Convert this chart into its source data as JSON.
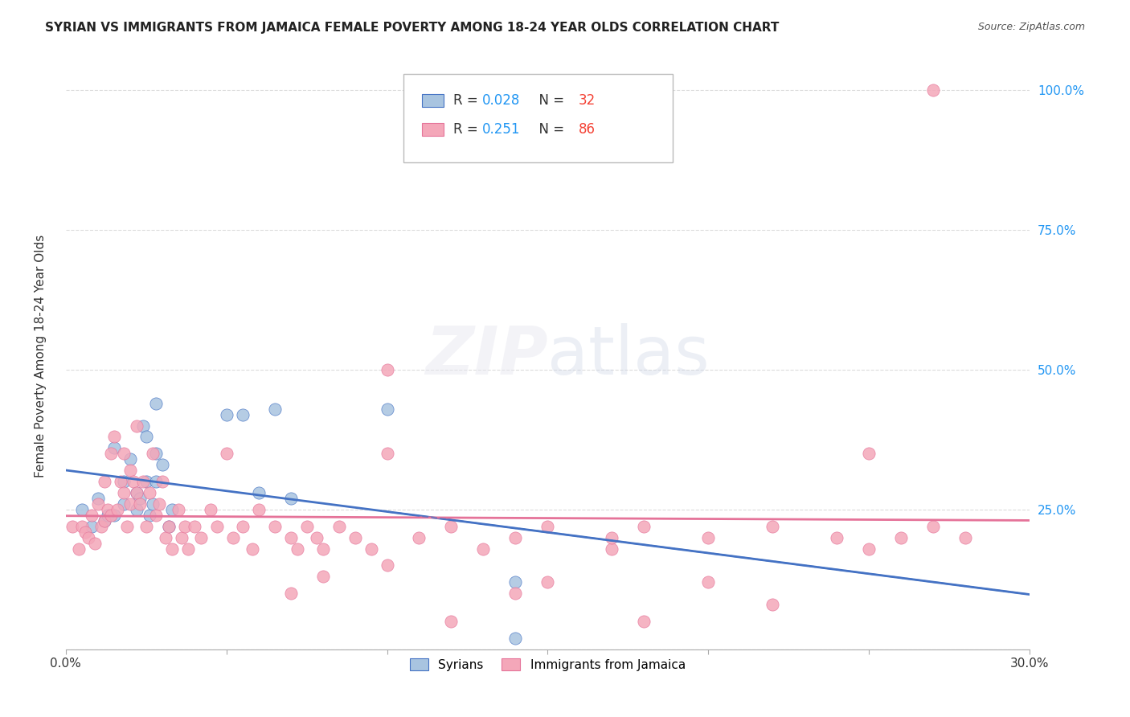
{
  "title": "SYRIAN VS IMMIGRANTS FROM JAMAICA FEMALE POVERTY AMONG 18-24 YEAR OLDS CORRELATION CHART",
  "source": "Source: ZipAtlas.com",
  "xlabel": "",
  "ylabel": "Female Poverty Among 18-24 Year Olds",
  "xlim": [
    0.0,
    0.3
  ],
  "ylim": [
    0.0,
    1.05
  ],
  "xticks": [
    0.0,
    0.05,
    0.1,
    0.15,
    0.2,
    0.25,
    0.3
  ],
  "xticklabels": [
    "0.0%",
    "",
    "",
    "",
    "",
    "",
    "30.0%"
  ],
  "ytick_positions": [
    0.0,
    0.25,
    0.5,
    0.75,
    1.0
  ],
  "yticklabels_right": [
    "",
    "25.0%",
    "50.0%",
    "75.0%",
    "100.0%"
  ],
  "syrian_color": "#a8c4e0",
  "jamaica_color": "#f4a7b9",
  "syrian_line_color": "#4472c4",
  "jamaica_line_color": "#e57399",
  "legend_r_color": "#2196f3",
  "legend_n_color": "#f44336",
  "R_syrian": 0.028,
  "N_syrian": 32,
  "R_jamaica": 0.251,
  "N_jamaica": 86,
  "watermark": "ZIPatlas",
  "background_color": "#ffffff",
  "syrian_scatter_x": [
    0.005,
    0.008,
    0.01,
    0.012,
    0.013,
    0.015,
    0.015,
    0.018,
    0.018,
    0.02,
    0.022,
    0.022,
    0.023,
    0.024,
    0.025,
    0.025,
    0.026,
    0.027,
    0.028,
    0.028,
    0.028,
    0.03,
    0.032,
    0.033,
    0.05,
    0.055,
    0.06,
    0.065,
    0.07,
    0.1,
    0.14,
    0.14
  ],
  "syrian_scatter_y": [
    0.25,
    0.22,
    0.27,
    0.23,
    0.24,
    0.36,
    0.24,
    0.3,
    0.26,
    0.34,
    0.28,
    0.25,
    0.27,
    0.4,
    0.38,
    0.3,
    0.24,
    0.26,
    0.35,
    0.3,
    0.44,
    0.33,
    0.22,
    0.25,
    0.42,
    0.42,
    0.28,
    0.43,
    0.27,
    0.43,
    0.12,
    0.02
  ],
  "jamaica_scatter_x": [
    0.002,
    0.004,
    0.005,
    0.006,
    0.007,
    0.008,
    0.009,
    0.01,
    0.011,
    0.012,
    0.012,
    0.013,
    0.014,
    0.014,
    0.015,
    0.016,
    0.017,
    0.018,
    0.018,
    0.019,
    0.02,
    0.02,
    0.021,
    0.022,
    0.022,
    0.023,
    0.024,
    0.025,
    0.026,
    0.027,
    0.028,
    0.029,
    0.03,
    0.031,
    0.032,
    0.033,
    0.035,
    0.036,
    0.037,
    0.038,
    0.04,
    0.042,
    0.045,
    0.047,
    0.05,
    0.052,
    0.055,
    0.058,
    0.06,
    0.065,
    0.07,
    0.072,
    0.075,
    0.078,
    0.08,
    0.085,
    0.09,
    0.095,
    0.1,
    0.11,
    0.12,
    0.13,
    0.14,
    0.15,
    0.17,
    0.18,
    0.2,
    0.22,
    0.24,
    0.25,
    0.26,
    0.27,
    0.28,
    0.1,
    0.15,
    0.2,
    0.25,
    0.07,
    0.12,
    0.18,
    0.22,
    0.08,
    0.1,
    0.14,
    0.17,
    0.27
  ],
  "jamaica_scatter_y": [
    0.22,
    0.18,
    0.22,
    0.21,
    0.2,
    0.24,
    0.19,
    0.26,
    0.22,
    0.23,
    0.3,
    0.25,
    0.24,
    0.35,
    0.38,
    0.25,
    0.3,
    0.28,
    0.35,
    0.22,
    0.26,
    0.32,
    0.3,
    0.28,
    0.4,
    0.26,
    0.3,
    0.22,
    0.28,
    0.35,
    0.24,
    0.26,
    0.3,
    0.2,
    0.22,
    0.18,
    0.25,
    0.2,
    0.22,
    0.18,
    0.22,
    0.2,
    0.25,
    0.22,
    0.35,
    0.2,
    0.22,
    0.18,
    0.25,
    0.22,
    0.2,
    0.18,
    0.22,
    0.2,
    0.18,
    0.22,
    0.2,
    0.18,
    0.35,
    0.2,
    0.22,
    0.18,
    0.2,
    0.22,
    0.18,
    0.22,
    0.2,
    0.22,
    0.2,
    0.18,
    0.2,
    0.22,
    0.2,
    0.15,
    0.12,
    0.12,
    0.35,
    0.1,
    0.05,
    0.05,
    0.08,
    0.13,
    0.5,
    0.1,
    0.2,
    1.0
  ]
}
